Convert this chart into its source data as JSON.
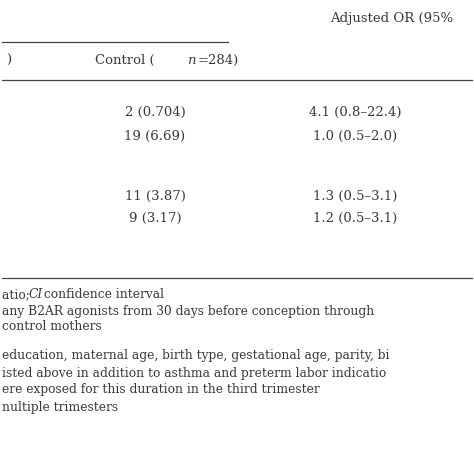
{
  "bg_color": "#ffffff",
  "header_top": "Adjusted OR (95%",
  "rows": [
    {
      "control": "2 (0.704)",
      "or": "4.1 (0.8–22.4)"
    },
    {
      "control": "19 (6.69)",
      "or": "1.0 (0.5–2.0)"
    },
    {
      "control": "",
      "or": ""
    },
    {
      "control": "11 (3.87)",
      "or": "1.3 (0.5–3.1)"
    },
    {
      "control": "9 (3.17)",
      "or": "1.2 (0.5–3.1)"
    }
  ],
  "footnotes": [
    [
      "atio; ",
      "CI",
      " confidence interval"
    ],
    [
      "any B2AR agonists from 30 days before conception through"
    ],
    [
      "control mothers"
    ],
    [
      "education, maternal age, birth type, gestational age, parity, bi"
    ],
    [
      "isted above in addition to asthma and preterm labor indicatio"
    ],
    [
      "ere exposed for this duration in the third trimester"
    ],
    [
      "nultiple trimesters"
    ]
  ],
  "line_color": "#444444",
  "text_color": "#3a3a3a",
  "font_size": 9.5,
  "footnote_font_size": 8.8,
  "header_font_size": 9.5
}
